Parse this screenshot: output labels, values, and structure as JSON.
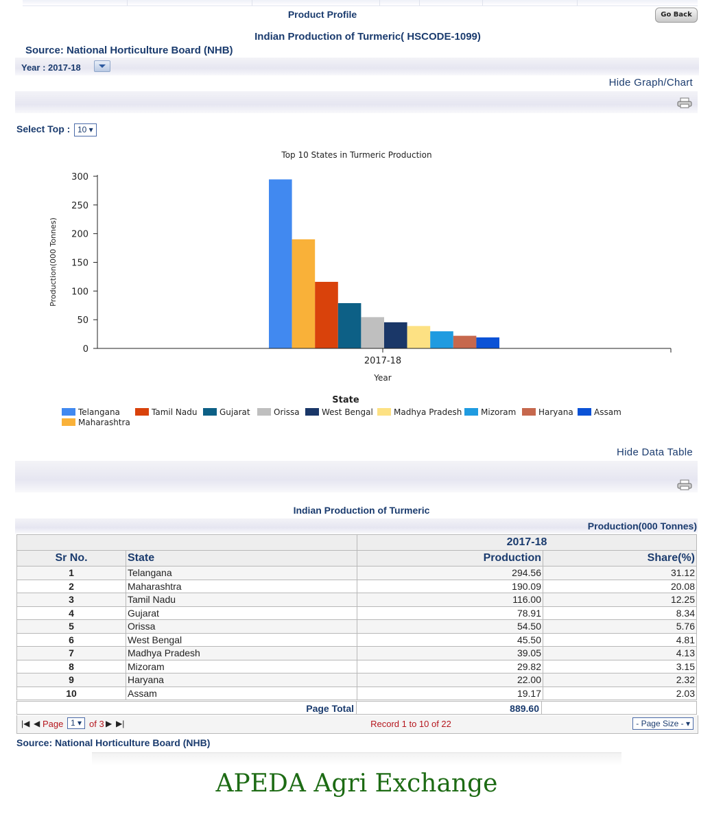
{
  "header": {
    "section_title": "Product Profile",
    "go_back_label": "Go Back",
    "report_title": "Indian Production of Turmeric( HSCODE-1099)",
    "source": "Source: National Horticulture Board (NHB)",
    "year_label": "Year : 2017-18"
  },
  "toggles": {
    "hide_graph": "Hide Graph/Chart",
    "hide_table": "Hide Data Table"
  },
  "select_top": {
    "label": "Select Top :",
    "value": "10 ▾"
  },
  "chart_data": {
    "type": "bar",
    "title": "Top 10 States in Turmeric Production",
    "xlabel": "Year",
    "ylabel": "Production(000 Tonnes)",
    "ylim": [
      0,
      300
    ],
    "yticks": [
      "0",
      "50",
      "100",
      "150",
      "200",
      "250",
      "300"
    ],
    "categories": [
      "2017-18"
    ],
    "series": [
      {
        "name": "Telangana",
        "value": 294.56,
        "color": "#4189f0"
      },
      {
        "name": "Maharashtra",
        "value": 190.09,
        "color": "#f9b139"
      },
      {
        "name": "Tamil Nadu",
        "value": 116.0,
        "color": "#d9420b"
      },
      {
        "name": "Gujarat",
        "value": 78.91,
        "color": "#0d6086"
      },
      {
        "name": "Orissa",
        "value": 54.5,
        "color": "#bfbfbf"
      },
      {
        "name": "West Bengal",
        "value": 45.5,
        "color": "#1a3768"
      },
      {
        "name": "Madhya Pradesh",
        "value": 39.05,
        "color": "#fde183"
      },
      {
        "name": "Mizoram",
        "value": 29.82,
        "color": "#1f9be0"
      },
      {
        "name": "Haryana",
        "value": 22.0,
        "color": "#c6684d"
      },
      {
        "name": "Assam",
        "value": 19.17,
        "color": "#0b52d6"
      }
    ],
    "legend_title": "State"
  },
  "table": {
    "title": "Indian Production of Turmeric",
    "unit": "Production(000 Tonnes)",
    "year": "2017-18",
    "headers": {
      "sr": "Sr No.",
      "state": "State",
      "production": "Production",
      "share": "Share(%)"
    },
    "rows": [
      {
        "sr": "1",
        "state": "Telangana",
        "production": "294.56",
        "share": "31.12"
      },
      {
        "sr": "2",
        "state": "Maharashtra",
        "production": "190.09",
        "share": "20.08"
      },
      {
        "sr": "3",
        "state": "Tamil Nadu",
        "production": "116.00",
        "share": "12.25"
      },
      {
        "sr": "4",
        "state": "Gujarat",
        "production": "78.91",
        "share": "8.34"
      },
      {
        "sr": "5",
        "state": "Orissa",
        "production": "54.50",
        "share": "5.76"
      },
      {
        "sr": "6",
        "state": "West Bengal",
        "production": "45.50",
        "share": "4.81"
      },
      {
        "sr": "7",
        "state": "Madhya Pradesh",
        "production": "39.05",
        "share": "4.13"
      },
      {
        "sr": "8",
        "state": "Mizoram",
        "production": "29.82",
        "share": "3.15"
      },
      {
        "sr": "9",
        "state": "Haryana",
        "production": "22.00",
        "share": "2.32"
      },
      {
        "sr": "10",
        "state": "Assam",
        "production": "19.17",
        "share": "2.03"
      }
    ],
    "page_total_label": "Page Total",
    "page_total_value": "889.60"
  },
  "pager": {
    "first": "|◀",
    "prev": "◀",
    "page_label": "Page",
    "page_value": "1 ▾",
    "of_label": "of 3",
    "next": "▶",
    "last": "▶|",
    "record_text": "Record 1 to 10 of 22",
    "page_size": "- Page Size - ▾"
  },
  "bottom_source": "Source: National Horticulture Board (NHB)",
  "footer_brand": "APEDA Agri Exchange"
}
